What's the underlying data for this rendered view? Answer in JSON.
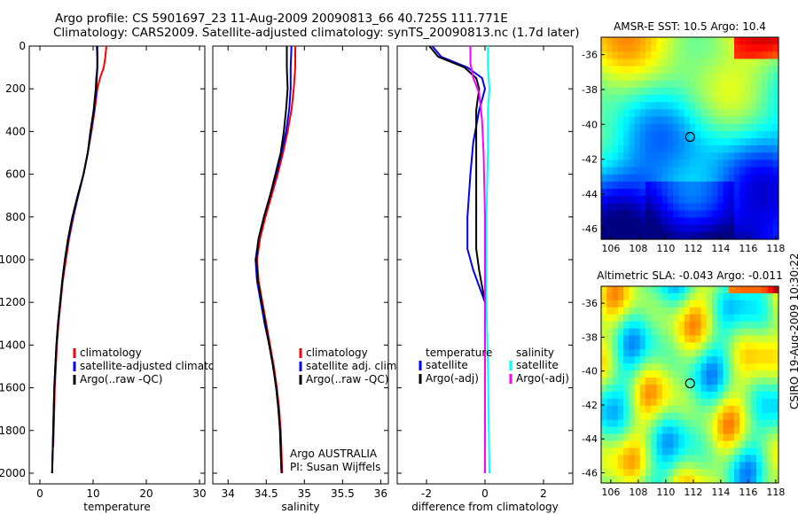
{
  "header": {
    "line1": "Argo profile: CS 5901697_23 11-Aug-2009 20090813_66 40.725S 111.771E",
    "line2": "Climatology: CARS2009. Satellite-adjusted climatology: synTS_20090813.nc (1.7d later)"
  },
  "credit": "CSIRO 19-Aug-2009 10:30:22",
  "colors": {
    "climatology": "#ff0000",
    "satellite": "#0000ff",
    "argo": "#000000",
    "sat_salinity": "#00ffff",
    "argo_salinity": "#ff00ff"
  },
  "chart_data": [
    {
      "type": "line",
      "id": "temperature",
      "xlabel": "temperature",
      "xlim": [
        -2,
        31
      ],
      "xticks": [
        0,
        10,
        20,
        30
      ],
      "ylim": [
        0,
        2050
      ],
      "yticks": [
        0,
        200,
        400,
        600,
        800,
        1000,
        1200,
        1400,
        1600,
        1800,
        2000
      ],
      "reversed_y": true,
      "legend": [
        "climatology",
        "satellite-adjusted climatology",
        "Argo(..raw -QC)"
      ],
      "series": [
        {
          "name": "climatology",
          "color": "#ff0000",
          "points": [
            [
              12.5,
              0
            ],
            [
              12.3,
              50
            ],
            [
              12.0,
              100
            ],
            [
              11.3,
              150
            ],
            [
              10.8,
              200
            ],
            [
              10.3,
              300
            ],
            [
              9.7,
              400
            ],
            [
              9.0,
              500
            ],
            [
              8.2,
              600
            ],
            [
              7.2,
              700
            ],
            [
              6.3,
              800
            ],
            [
              5.5,
              900
            ],
            [
              4.9,
              1000
            ],
            [
              4.3,
              1100
            ],
            [
              3.9,
              1200
            ],
            [
              3.5,
              1300
            ],
            [
              3.2,
              1400
            ],
            [
              3.0,
              1500
            ],
            [
              2.8,
              1600
            ],
            [
              2.7,
              1700
            ],
            [
              2.6,
              1800
            ],
            [
              2.5,
              1880
            ]
          ]
        },
        {
          "name": "satellite-adjusted climatology",
          "color": "#0000ff",
          "points": [
            [
              10.8,
              0
            ],
            [
              10.8,
              50
            ],
            [
              10.8,
              100
            ],
            [
              10.7,
              150
            ],
            [
              10.6,
              200
            ],
            [
              10.2,
              300
            ],
            [
              9.6,
              400
            ],
            [
              9.0,
              500
            ],
            [
              8.2,
              600
            ],
            [
              7.2,
              700
            ],
            [
              6.2,
              800
            ],
            [
              5.4,
              900
            ],
            [
              4.7,
              1000
            ],
            [
              4.2,
              1100
            ],
            [
              3.8,
              1200
            ],
            [
              3.4,
              1300
            ],
            [
              3.1,
              1400
            ],
            [
              2.9,
              1500
            ],
            [
              2.7,
              1600
            ],
            [
              2.6,
              1700
            ],
            [
              2.5,
              1800
            ],
            [
              2.4,
              1900
            ],
            [
              2.3,
              2000
            ]
          ]
        },
        {
          "name": "Argo(..raw -QC)",
          "color": "#000000",
          "points": [
            [
              10.7,
              0
            ],
            [
              10.8,
              50
            ],
            [
              10.8,
              100
            ],
            [
              10.6,
              150
            ],
            [
              10.5,
              200
            ],
            [
              10.1,
              300
            ],
            [
              9.5,
              400
            ],
            [
              9.0,
              500
            ],
            [
              8.2,
              600
            ],
            [
              7.1,
              700
            ],
            [
              6.1,
              800
            ],
            [
              5.3,
              900
            ],
            [
              4.7,
              1000
            ],
            [
              4.2,
              1100
            ],
            [
              3.8,
              1200
            ],
            [
              3.4,
              1300
            ],
            [
              3.1,
              1400
            ],
            [
              2.9,
              1500
            ],
            [
              2.7,
              1600
            ],
            [
              2.6,
              1700
            ],
            [
              2.5,
              1800
            ],
            [
              2.4,
              1900
            ],
            [
              2.3,
              2000
            ]
          ]
        }
      ]
    },
    {
      "type": "line",
      "id": "salinity",
      "xlabel": "salinity",
      "xlim": [
        33.8,
        36.1
      ],
      "xticks": [
        34,
        34.5,
        35,
        35.5,
        36
      ],
      "ylim": [
        0,
        2050
      ],
      "reversed_y": true,
      "legend": [
        "climatology",
        "satellite adj. clim.",
        "Argo(..raw -QC)"
      ],
      "annotation": [
        "Argo AUSTRALIA",
        "PI: Susan Wijffels"
      ],
      "series": [
        {
          "name": "climatology",
          "color": "#ff0000",
          "points": [
            [
              34.88,
              0
            ],
            [
              34.88,
              100
            ],
            [
              34.86,
              200
            ],
            [
              34.83,
              300
            ],
            [
              34.78,
              400
            ],
            [
              34.72,
              500
            ],
            [
              34.65,
              600
            ],
            [
              34.57,
              700
            ],
            [
              34.49,
              800
            ],
            [
              34.42,
              900
            ],
            [
              34.38,
              1000
            ],
            [
              34.4,
              1100
            ],
            [
              34.45,
              1200
            ],
            [
              34.5,
              1300
            ],
            [
              34.55,
              1400
            ],
            [
              34.6,
              1500
            ],
            [
              34.64,
              1600
            ],
            [
              34.67,
              1700
            ],
            [
              34.69,
              1800
            ],
            [
              34.7,
              1900
            ],
            [
              34.71,
              2000
            ]
          ]
        },
        {
          "name": "satellite adj. clim.",
          "color": "#0000ff",
          "points": [
            [
              34.83,
              0
            ],
            [
              34.82,
              100
            ],
            [
              34.82,
              200
            ],
            [
              34.8,
              300
            ],
            [
              34.76,
              400
            ],
            [
              34.7,
              500
            ],
            [
              34.63,
              600
            ],
            [
              34.55,
              700
            ],
            [
              34.47,
              800
            ],
            [
              34.4,
              900
            ],
            [
              34.36,
              1000
            ],
            [
              34.38,
              1100
            ],
            [
              34.43,
              1200
            ],
            [
              34.48,
              1300
            ],
            [
              34.54,
              1400
            ],
            [
              34.59,
              1500
            ],
            [
              34.63,
              1600
            ],
            [
              34.66,
              1700
            ],
            [
              34.68,
              1800
            ],
            [
              34.69,
              1900
            ],
            [
              34.7,
              2000
            ]
          ]
        },
        {
          "name": "Argo(..raw -QC)",
          "color": "#000000",
          "points": [
            [
              34.77,
              0
            ],
            [
              34.77,
              100
            ],
            [
              34.78,
              200
            ],
            [
              34.76,
              300
            ],
            [
              34.73,
              400
            ],
            [
              34.69,
              500
            ],
            [
              34.62,
              600
            ],
            [
              34.55,
              700
            ],
            [
              34.47,
              800
            ],
            [
              34.4,
              900
            ],
            [
              34.37,
              1000
            ],
            [
              34.39,
              1100
            ],
            [
              34.44,
              1200
            ],
            [
              34.49,
              1300
            ],
            [
              34.54,
              1400
            ],
            [
              34.59,
              1500
            ],
            [
              34.63,
              1600
            ],
            [
              34.66,
              1700
            ],
            [
              34.68,
              1800
            ],
            [
              34.69,
              1900
            ],
            [
              34.7,
              2000
            ]
          ]
        }
      ]
    },
    {
      "type": "line",
      "id": "difference",
      "xlabel": "difference from climatology",
      "xlim": [
        -3,
        3
      ],
      "xticks": [
        -2,
        0,
        2
      ],
      "ylim": [
        0,
        2050
      ],
      "reversed_y": true,
      "legend_left_title": "temperature",
      "legend_right_title": "salinity",
      "legend": [
        "satellite",
        "Argo(-adj)",
        "satellite",
        "Argo(-adj)"
      ],
      "series": [
        {
          "name": "temperature satellite",
          "color": "#0000ff",
          "points": [
            [
              -1.8,
              0
            ],
            [
              -1.5,
              50
            ],
            [
              -0.6,
              100
            ],
            [
              -0.1,
              150
            ],
            [
              0.0,
              200
            ],
            [
              -0.2,
              300
            ],
            [
              -0.4,
              450
            ],
            [
              -0.5,
              600
            ],
            [
              -0.6,
              800
            ],
            [
              -0.6,
              950
            ],
            [
              -0.4,
              1050
            ],
            [
              0.0,
              1200
            ],
            [
              0.0,
              2000
            ]
          ]
        },
        {
          "name": "temperature Argo(-adj)",
          "color": "#000000",
          "points": [
            [
              -1.9,
              0
            ],
            [
              -1.6,
              50
            ],
            [
              -0.7,
              100
            ],
            [
              -0.3,
              150
            ],
            [
              -0.2,
              200
            ],
            [
              -0.3,
              300
            ],
            [
              -0.3,
              450
            ],
            [
              -0.3,
              600
            ],
            [
              -0.3,
              800
            ],
            [
              -0.3,
              950
            ],
            [
              -0.2,
              1050
            ],
            [
              0.0,
              1200
            ],
            [
              0.0,
              2000
            ]
          ]
        },
        {
          "name": "salinity satellite",
          "color": "#00ffff",
          "points": [
            [
              0.1,
              0
            ],
            [
              0.1,
              100
            ],
            [
              0.15,
              200
            ],
            [
              0.1,
              300
            ],
            [
              0.1,
              500
            ],
            [
              0.05,
              800
            ],
            [
              0.05,
              1000
            ],
            [
              0.05,
              1200
            ],
            [
              0.1,
              1500
            ],
            [
              0.15,
              2000
            ]
          ]
        },
        {
          "name": "salinity Argo(-adj)",
          "color": "#ff00ff",
          "points": [
            [
              -0.5,
              0
            ],
            [
              -0.5,
              80
            ],
            [
              -0.4,
              150
            ],
            [
              -0.2,
              220
            ],
            [
              -0.1,
              350
            ],
            [
              -0.05,
              500
            ],
            [
              0.0,
              800
            ],
            [
              0.0,
              1200
            ],
            [
              0.0,
              2000
            ]
          ]
        }
      ]
    },
    {
      "type": "heatmap",
      "id": "sst-map",
      "title": "AMSR-E SST: 10.5 Argo: 10.4",
      "xlim": [
        105.3,
        118.2
      ],
      "ylim": [
        -46.6,
        -35.0
      ],
      "xticks": [
        106,
        108,
        110,
        112,
        114,
        116,
        118
      ],
      "yticks": [
        -36,
        -38,
        -40,
        -42,
        -44,
        -46
      ],
      "marker": {
        "lon": 111.771,
        "lat": -40.725
      }
    },
    {
      "type": "heatmap",
      "id": "sla-map",
      "title": "Altimetric SLA: -0.043 Argo: -0.011",
      "xlim": [
        105.3,
        118.2
      ],
      "ylim": [
        -46.6,
        -35.0
      ],
      "xticks": [
        106,
        108,
        110,
        112,
        114,
        116,
        118
      ],
      "yticks": [
        -36,
        -38,
        -40,
        -42,
        -44,
        -46
      ],
      "marker": {
        "lon": 111.771,
        "lat": -40.725
      }
    }
  ]
}
